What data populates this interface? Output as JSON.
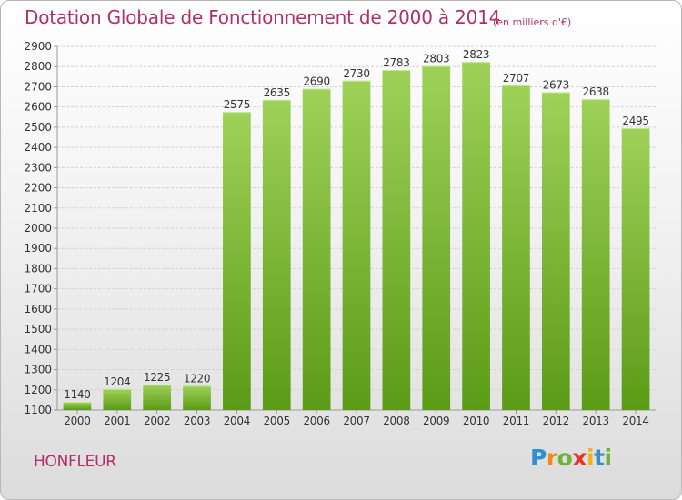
{
  "title": "Dotation Globale de Fonctionnement de 2000 à 2014",
  "subtitle": "(en milliers d'€)",
  "city": "HONFLEUR",
  "logo": {
    "letters": [
      "P",
      "r",
      "o",
      "x",
      "i",
      "t",
      "i"
    ],
    "colors": [
      "#2f8fd1",
      "#f08a1e",
      "#6cb33e",
      "#e7332b",
      "#f2b21b",
      "#2f8fd1",
      "#6cb33e"
    ]
  },
  "colors": {
    "bar_top": "#9ed158",
    "bar_bottom": "#5b9b16",
    "grid": "#d2d2d2",
    "title": "#b0306a"
  },
  "chart_data": {
    "type": "bar",
    "title": "Dotation Globale de Fonctionnement de 2000 à 2014",
    "subtitle": "(en milliers d'€)",
    "xlabel": "",
    "ylabel": "",
    "categories": [
      "2000",
      "2001",
      "2002",
      "2003",
      "2004",
      "2005",
      "2006",
      "2007",
      "2008",
      "2009",
      "2010",
      "2011",
      "2012",
      "2013",
      "2014"
    ],
    "values": [
      1140,
      1204,
      1225,
      1220,
      2575,
      2635,
      2690,
      2730,
      2783,
      2803,
      2823,
      2707,
      2673,
      2638,
      2495
    ],
    "ylim": [
      1100,
      2900
    ],
    "yticks": [
      1100,
      1200,
      1300,
      1400,
      1500,
      1600,
      1700,
      1800,
      1900,
      2000,
      2100,
      2200,
      2300,
      2400,
      2500,
      2600,
      2700,
      2800,
      2900
    ],
    "grid": true
  }
}
